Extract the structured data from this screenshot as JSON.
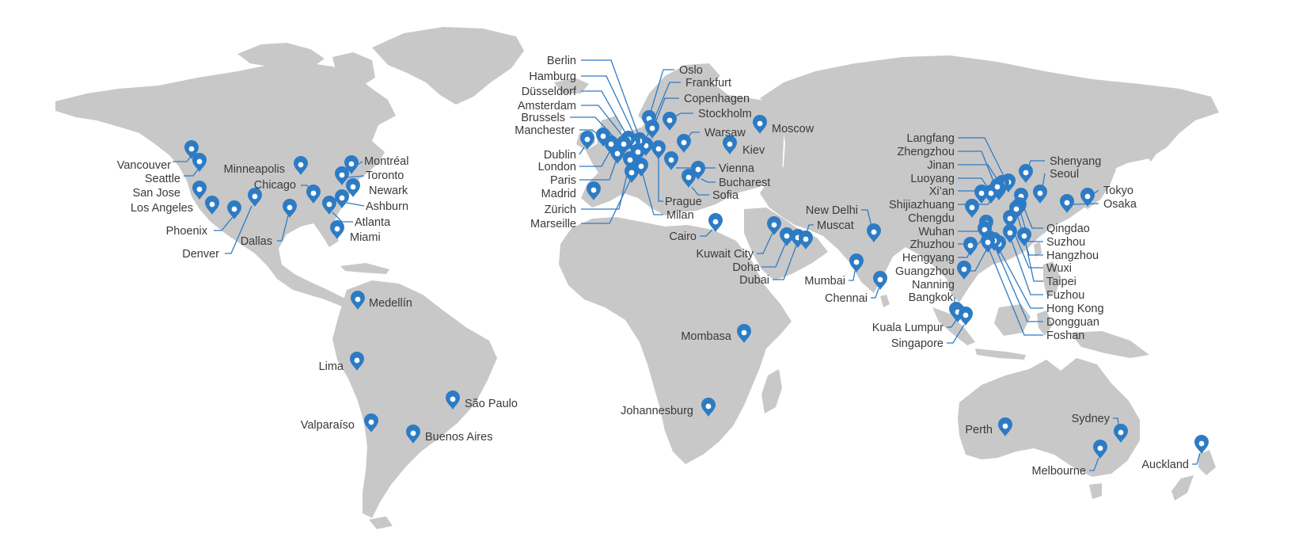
{
  "colors": {
    "land": "#c8c8c8",
    "pin": "#2d7bc4",
    "label": "#3a3a3a"
  },
  "pin_icon": "map-marker-icon",
  "cities": [
    {
      "id": "vancouver",
      "name": "Vancouver"
    },
    {
      "id": "seattle",
      "name": "Seattle"
    },
    {
      "id": "san-jose",
      "name": "San Jose"
    },
    {
      "id": "los-angeles",
      "name": "Los Angeles"
    },
    {
      "id": "phoenix",
      "name": "Phoenix"
    },
    {
      "id": "denver",
      "name": "Denver"
    },
    {
      "id": "dallas",
      "name": "Dallas"
    },
    {
      "id": "minneapolis",
      "name": "Minneapolis"
    },
    {
      "id": "chicago",
      "name": "Chicago"
    },
    {
      "id": "montreal",
      "name": "Montréal"
    },
    {
      "id": "toronto",
      "name": "Toronto"
    },
    {
      "id": "newark",
      "name": "Newark"
    },
    {
      "id": "ashburn",
      "name": "Ashburn"
    },
    {
      "id": "atlanta",
      "name": "Atlanta"
    },
    {
      "id": "miami",
      "name": "Miami"
    },
    {
      "id": "medellin",
      "name": "Medellín"
    },
    {
      "id": "lima",
      "name": "Lima"
    },
    {
      "id": "sao-paulo",
      "name": "São Paulo"
    },
    {
      "id": "valparaiso",
      "name": "Valparaíso"
    },
    {
      "id": "buenos-aires",
      "name": "Buenos Aires"
    },
    {
      "id": "berlin",
      "name": "Berlin"
    },
    {
      "id": "hamburg",
      "name": "Hamburg"
    },
    {
      "id": "dusseldorf",
      "name": "Düsseldorf"
    },
    {
      "id": "amsterdam",
      "name": "Amsterdam"
    },
    {
      "id": "brussels",
      "name": "Brussels"
    },
    {
      "id": "manchester",
      "name": "Manchester"
    },
    {
      "id": "dublin",
      "name": "Dublin"
    },
    {
      "id": "london",
      "name": "London"
    },
    {
      "id": "paris",
      "name": "Paris"
    },
    {
      "id": "madrid",
      "name": "Madrid"
    },
    {
      "id": "zurich",
      "name": "Zürich"
    },
    {
      "id": "marseille",
      "name": "Marseille"
    },
    {
      "id": "oslo",
      "name": "Oslo"
    },
    {
      "id": "frankfurt",
      "name": "Frankfurt"
    },
    {
      "id": "copenhagen",
      "name": "Copenhagen"
    },
    {
      "id": "stockholm",
      "name": "Stockholm"
    },
    {
      "id": "warsaw",
      "name": "Warsaw"
    },
    {
      "id": "moscow",
      "name": "Moscow"
    },
    {
      "id": "kiev",
      "name": "Kiev"
    },
    {
      "id": "vienna",
      "name": "Vienna"
    },
    {
      "id": "bucharest",
      "name": "Bucharest"
    },
    {
      "id": "sofia",
      "name": "Sofia"
    },
    {
      "id": "prague",
      "name": "Prague"
    },
    {
      "id": "milan",
      "name": "Milan"
    },
    {
      "id": "cairo",
      "name": "Cairo"
    },
    {
      "id": "kuwait-city",
      "name": "Kuwait City"
    },
    {
      "id": "doha",
      "name": "Doha"
    },
    {
      "id": "dubai",
      "name": "Dubai"
    },
    {
      "id": "muscat",
      "name": "Muscat"
    },
    {
      "id": "new-delhi",
      "name": "New Delhi"
    },
    {
      "id": "mumbai",
      "name": "Mumbai"
    },
    {
      "id": "chennai",
      "name": "Chennai"
    },
    {
      "id": "mombasa",
      "name": "Mombasa"
    },
    {
      "id": "johannesburg",
      "name": "Johannesburg"
    },
    {
      "id": "langfang",
      "name": "Langfang"
    },
    {
      "id": "zhengzhou",
      "name": "Zhengzhou"
    },
    {
      "id": "jinan",
      "name": "Jinan"
    },
    {
      "id": "luoyang",
      "name": "Luoyang"
    },
    {
      "id": "xian",
      "name": "Xi’an"
    },
    {
      "id": "shijiazhuang",
      "name": "Shijiazhuang"
    },
    {
      "id": "chengdu",
      "name": "Chengdu"
    },
    {
      "id": "wuhan",
      "name": "Wuhan"
    },
    {
      "id": "zhuzhou",
      "name": "Zhuzhou"
    },
    {
      "id": "hengyang",
      "name": "Hengyang"
    },
    {
      "id": "guangzhou",
      "name": "Guangzhou"
    },
    {
      "id": "nanning",
      "name": "Nanning"
    },
    {
      "id": "bangkok",
      "name": "Bangkok"
    },
    {
      "id": "kuala-lumpur",
      "name": "Kuala Lumpur"
    },
    {
      "id": "singapore",
      "name": "Singapore"
    },
    {
      "id": "shenyang",
      "name": "Shenyang"
    },
    {
      "id": "seoul",
      "name": "Seoul"
    },
    {
      "id": "tokyo",
      "name": "Tokyo"
    },
    {
      "id": "osaka",
      "name": "Osaka"
    },
    {
      "id": "qingdao",
      "name": "Qingdao"
    },
    {
      "id": "suzhou",
      "name": "Suzhou"
    },
    {
      "id": "hangzhou",
      "name": "Hangzhou"
    },
    {
      "id": "wuxi",
      "name": "Wuxi"
    },
    {
      "id": "taipei",
      "name": "Taipei"
    },
    {
      "id": "fuzhou",
      "name": "Fuzhou"
    },
    {
      "id": "hong-kong",
      "name": "Hong Kong"
    },
    {
      "id": "dongguan",
      "name": "Dongguan"
    },
    {
      "id": "foshan",
      "name": "Foshan"
    },
    {
      "id": "perth",
      "name": "Perth"
    },
    {
      "id": "sydney",
      "name": "Sydney"
    },
    {
      "id": "melbourne",
      "name": "Melbourne"
    },
    {
      "id": "auckland",
      "name": "Auckland"
    }
  ]
}
